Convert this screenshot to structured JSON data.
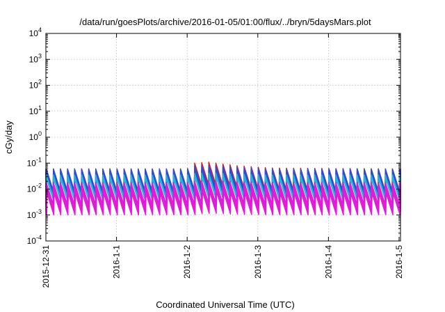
{
  "chart_data": {
    "type": "line",
    "title": "/data/run/goesPlots/archive/2016-01-05/01:00/flux/../bryn/5daysMars.plot",
    "xlabel": "Coordinated Universal Time (UTC)",
    "ylabel": "cGy/day",
    "y_scale": "log",
    "ylim": [
      0.0001,
      10000
    ],
    "y_ticks": [
      {
        "base": "10",
        "exp": "4"
      },
      {
        "base": "10",
        "exp": "3"
      },
      {
        "base": "10",
        "exp": "2"
      },
      {
        "base": "10",
        "exp": "1"
      },
      {
        "base": "10",
        "exp": "0"
      },
      {
        "base": "10",
        "exp": "-1"
      },
      {
        "base": "10",
        "exp": "-2"
      },
      {
        "base": "10",
        "exp": "-3"
      },
      {
        "base": "10",
        "exp": "-4"
      }
    ],
    "xlim_days": [
      0,
      5.02
    ],
    "x_ticks": [
      "2015-12-31",
      "2016-1-1",
      "2016-1-2",
      "2016-1-3",
      "2016-1-4",
      "2016-1-5"
    ],
    "grid": true,
    "legend": "none",
    "cycles_per_day": 10,
    "sawtooth_peak": [
      {
        "day": 0.0,
        "red": 0.06,
        "blue": 0.06,
        "cyan": 0.035,
        "magenta": 0.018
      },
      {
        "day": 2.0,
        "red": 0.06,
        "blue": 0.06,
        "cyan": 0.035,
        "magenta": 0.018
      },
      {
        "day": 2.1,
        "red": 0.1,
        "blue": 0.08,
        "cyan": 0.04,
        "magenta": 0.02
      },
      {
        "day": 2.3,
        "red": 0.11,
        "blue": 0.085,
        "cyan": 0.042,
        "magenta": 0.021
      },
      {
        "day": 2.7,
        "red": 0.08,
        "blue": 0.07,
        "cyan": 0.038,
        "magenta": 0.019
      },
      {
        "day": 3.2,
        "red": 0.065,
        "blue": 0.06,
        "cyan": 0.035,
        "magenta": 0.018
      },
      {
        "day": 5.02,
        "red": 0.06,
        "blue": 0.06,
        "cyan": 0.035,
        "magenta": 0.018
      }
    ],
    "sawtooth_trough_ratio": 0.15,
    "series": [
      {
        "color": "#e81416",
        "peak_key": "red",
        "lines": 2
      },
      {
        "color": "#2a4fd7",
        "peak_key": "blue",
        "lines": 3
      },
      {
        "color": "#22b7d6",
        "peak_key": "cyan",
        "lines": 2
      },
      {
        "color": "#e01ad8",
        "peak_key": "magenta",
        "lines": 4
      }
    ]
  }
}
